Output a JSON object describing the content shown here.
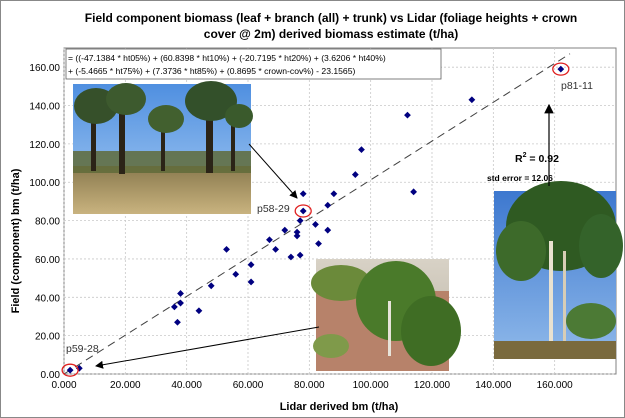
{
  "chart_data": {
    "type": "scatter",
    "title_line1": "Field component biomass (leaf + branch (all) + trunk)  vs Lidar (foliage heights + crown",
    "title_line2": "cover @ 2m) derived biomass estimate (t/ha)",
    "xlabel": "Lidar derived bm (t/ha)",
    "ylabel": "Field (component) bm (t/ha)",
    "xlim": [
      0,
      180
    ],
    "ylim": [
      0,
      170
    ],
    "xticks": [
      0,
      20,
      40,
      60,
      80,
      100,
      120,
      140,
      160
    ],
    "yticks": [
      0,
      20,
      40,
      60,
      80,
      100,
      120,
      140,
      160
    ],
    "xtick_labels": [
      "0.000",
      "20.000",
      "40.000",
      "60.000",
      "80.000",
      "100.000",
      "120.000",
      "140.000",
      "160.000"
    ],
    "ytick_labels": [
      "0.00",
      "20.00",
      "40.00",
      "60.00",
      "80.00",
      "100.00",
      "120.00",
      "140.00",
      "160.00"
    ],
    "grid": true,
    "marker_color": "#000080",
    "highlight_color": "#e02020",
    "points": [
      {
        "x": 2,
        "y": 2
      },
      {
        "x": 5,
        "y": 3
      },
      {
        "x": 36,
        "y": 35
      },
      {
        "x": 37,
        "y": 27
      },
      {
        "x": 38,
        "y": 42
      },
      {
        "x": 38,
        "y": 37
      },
      {
        "x": 44,
        "y": 33
      },
      {
        "x": 48,
        "y": 46
      },
      {
        "x": 53,
        "y": 65
      },
      {
        "x": 56,
        "y": 52
      },
      {
        "x": 61,
        "y": 57
      },
      {
        "x": 61,
        "y": 48
      },
      {
        "x": 67,
        "y": 70
      },
      {
        "x": 69,
        "y": 65
      },
      {
        "x": 72,
        "y": 75
      },
      {
        "x": 74,
        "y": 61
      },
      {
        "x": 76,
        "y": 74
      },
      {
        "x": 76,
        "y": 72
      },
      {
        "x": 77,
        "y": 80
      },
      {
        "x": 77,
        "y": 62
      },
      {
        "x": 78,
        "y": 85
      },
      {
        "x": 78,
        "y": 94
      },
      {
        "x": 82,
        "y": 78
      },
      {
        "x": 83,
        "y": 68
      },
      {
        "x": 86,
        "y": 88
      },
      {
        "x": 86,
        "y": 75
      },
      {
        "x": 88,
        "y": 94
      },
      {
        "x": 95,
        "y": 104
      },
      {
        "x": 97,
        "y": 117
      },
      {
        "x": 112,
        "y": 135
      },
      {
        "x": 114,
        "y": 95
      },
      {
        "x": 133,
        "y": 143
      },
      {
        "x": 162,
        "y": 159
      }
    ],
    "trendline": {
      "x": [
        0,
        165
      ],
      "y": [
        0,
        167
      ]
    },
    "equation_lines": [
      "= ((-47.1384  * ht05%) + (60.8398 * ht10%) + (-20.7195 * ht20%) + (3.6206 * ht40%)",
      "+ (-5.4665 * ht75%) + (7.3736 * ht85%) + (0.8695 * crown-cov%) - 23.1565)"
    ],
    "r2_label": "R",
    "r2_sup": "2",
    "r2_value": " = 0.92",
    "std_error": "std error = 12.06",
    "annotations": [
      {
        "label": "p81-11",
        "x": 162,
        "y": 159
      },
      {
        "label": "p58-29",
        "x": 78,
        "y": 85
      },
      {
        "label": "p59-28",
        "x": 2,
        "y": 2
      }
    ]
  },
  "photos": [
    {
      "name": "open-woodland-photo"
    },
    {
      "name": "regrowth-scrub-photo"
    },
    {
      "name": "tall-forest-photo"
    }
  ]
}
